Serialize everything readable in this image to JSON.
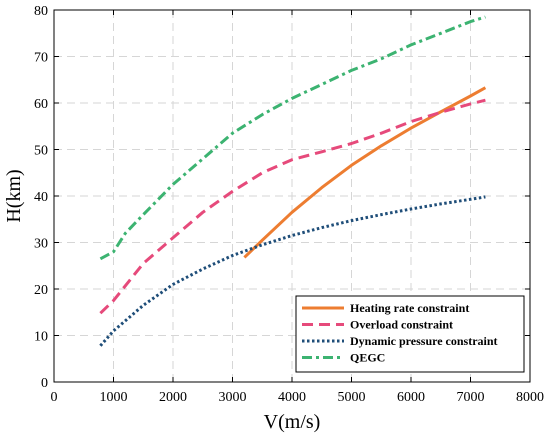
{
  "chart_data": {
    "type": "line",
    "xlabel": "V(m/s)",
    "ylabel": "H(km)",
    "xlim": [
      0,
      8000
    ],
    "ylim": [
      0,
      80
    ],
    "xticks": [
      0,
      1000,
      2000,
      3000,
      4000,
      5000,
      6000,
      7000,
      8000
    ],
    "yticks": [
      0,
      10,
      20,
      30,
      40,
      50,
      60,
      70,
      80
    ],
    "grid": true,
    "legend_position": "bottom-right",
    "series": [
      {
        "name": "Heating rate constraint",
        "color": "#ED7D31",
        "style": "solid",
        "points": [
          [
            3200,
            26.8
          ],
          [
            3500,
            30.5
          ],
          [
            4000,
            36.5
          ],
          [
            4500,
            41.8
          ],
          [
            5000,
            46.6
          ],
          [
            5500,
            50.8
          ],
          [
            6000,
            54.6
          ],
          [
            6500,
            58.1
          ],
          [
            7000,
            61.5
          ],
          [
            7250,
            63.3
          ]
        ]
      },
      {
        "name": "Overload constraint",
        "color": "#E64A7B",
        "style": "dashed",
        "points": [
          [
            780,
            14.8
          ],
          [
            1000,
            17.5
          ],
          [
            1500,
            25.5
          ],
          [
            2000,
            31.0
          ],
          [
            2500,
            36.5
          ],
          [
            3000,
            41.0
          ],
          [
            3500,
            45.0
          ],
          [
            4000,
            47.8
          ],
          [
            4500,
            49.5
          ],
          [
            5000,
            51.3
          ],
          [
            5500,
            53.5
          ],
          [
            6000,
            56.0
          ],
          [
            6500,
            58.0
          ],
          [
            7000,
            59.8
          ],
          [
            7250,
            60.6
          ]
        ]
      },
      {
        "name": "Dynamic pressure constraint",
        "color": "#1F4E79",
        "style": "dotted",
        "points": [
          [
            780,
            7.8
          ],
          [
            1000,
            11.0
          ],
          [
            1500,
            16.5
          ],
          [
            2000,
            21.0
          ],
          [
            2500,
            24.3
          ],
          [
            3000,
            27.2
          ],
          [
            3500,
            29.5
          ],
          [
            4000,
            31.5
          ],
          [
            4500,
            33.2
          ],
          [
            5000,
            34.7
          ],
          [
            5500,
            36.0
          ],
          [
            6000,
            37.2
          ],
          [
            6500,
            38.3
          ],
          [
            7000,
            39.3
          ],
          [
            7250,
            39.8
          ]
        ]
      },
      {
        "name": "QEGC",
        "color": "#3CB371",
        "style": "dashdot",
        "points": [
          [
            780,
            26.5
          ],
          [
            1000,
            28.0
          ],
          [
            1200,
            32.0
          ],
          [
            1500,
            36.0
          ],
          [
            2000,
            42.5
          ],
          [
            2500,
            48.0
          ],
          [
            3000,
            53.5
          ],
          [
            3500,
            57.5
          ],
          [
            4000,
            61.0
          ],
          [
            4500,
            64.0
          ],
          [
            5000,
            67.0
          ],
          [
            5500,
            69.5
          ],
          [
            6000,
            72.5
          ],
          [
            6500,
            75.0
          ],
          [
            7000,
            77.5
          ],
          [
            7250,
            78.5
          ]
        ]
      }
    ]
  }
}
